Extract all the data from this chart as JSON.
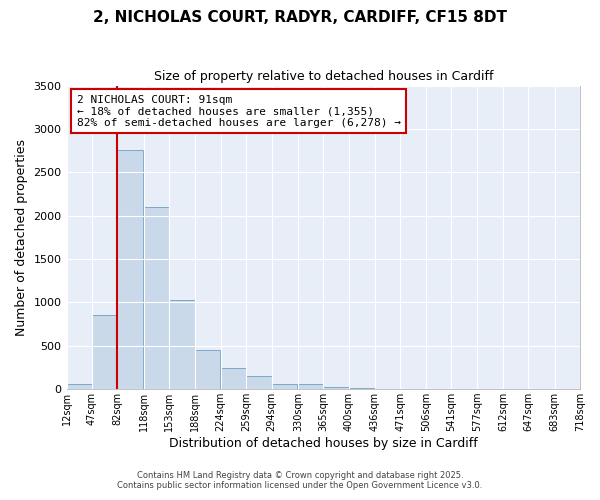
{
  "title": "2, NICHOLAS COURT, RADYR, CARDIFF, CF15 8DT",
  "subtitle": "Size of property relative to detached houses in Cardiff",
  "xlabel": "Distribution of detached houses by size in Cardiff",
  "ylabel": "Number of detached properties",
  "bar_color": "#c9d9ea",
  "bar_edge_color": "#7aaac8",
  "background_color": "#ffffff",
  "axes_bg_color": "#e8eef8",
  "grid_color": "#ffffff",
  "bins": [
    12,
    47,
    82,
    118,
    153,
    188,
    224,
    259,
    294,
    330,
    365,
    400,
    436,
    471,
    506,
    541,
    577,
    612,
    647,
    683,
    718
  ],
  "bin_labels": [
    "12sqm",
    "47sqm",
    "82sqm",
    "118sqm",
    "153sqm",
    "188sqm",
    "224sqm",
    "259sqm",
    "294sqm",
    "330sqm",
    "365sqm",
    "400sqm",
    "436sqm",
    "471sqm",
    "506sqm",
    "541sqm",
    "577sqm",
    "612sqm",
    "647sqm",
    "683sqm",
    "718sqm"
  ],
  "values": [
    55,
    850,
    2760,
    2100,
    1030,
    450,
    240,
    155,
    65,
    55,
    30,
    15,
    5,
    0,
    0,
    0,
    0,
    0,
    0,
    5
  ],
  "vline_x": 82,
  "vline_color": "#cc0000",
  "annotation_title": "2 NICHOLAS COURT: 91sqm",
  "annotation_line2": "← 18% of detached houses are smaller (1,355)",
  "annotation_line3": "82% of semi-detached houses are larger (6,278) →",
  "annotation_box_color": "#ffffff",
  "annotation_box_edge": "#cc0000",
  "ylim": [
    0,
    3500
  ],
  "yticks": [
    0,
    500,
    1000,
    1500,
    2000,
    2500,
    3000,
    3500
  ],
  "footer1": "Contains HM Land Registry data © Crown copyright and database right 2025.",
  "footer2": "Contains public sector information licensed under the Open Government Licence v3.0."
}
